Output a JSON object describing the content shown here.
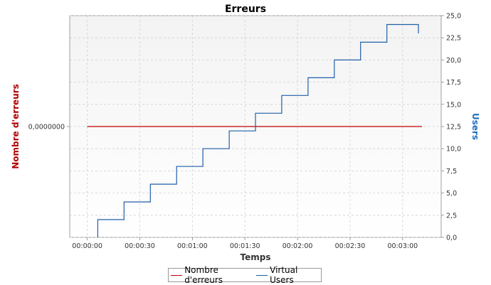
{
  "chart_data": {
    "type": "line",
    "title": "Erreurs",
    "xlabel": "Temps",
    "ylabel_left": "Nombre d'erreurs",
    "ylabel_right": "Users",
    "x_tick_labels": [
      "00:00:00",
      "00:00:30",
      "00:01:00",
      "00:01:30",
      "00:02:00",
      "00:02:30",
      "00:03:00"
    ],
    "x_tick_seconds": [
      0,
      30,
      60,
      90,
      120,
      150,
      180
    ],
    "xlim_seconds": [
      -10,
      202
    ],
    "left_axis": {
      "tick_labels": [
        "0,0000000"
      ],
      "ylim": [
        -1,
        1
      ]
    },
    "right_axis": {
      "tick_labels": [
        "0,0",
        "2,5",
        "5,0",
        "7,5",
        "10,0",
        "12,5",
        "15,0",
        "17,5",
        "20,0",
        "22,5",
        "25,0"
      ],
      "ticks": [
        0,
        2.5,
        5,
        7.5,
        10,
        12.5,
        15,
        17.5,
        20,
        22.5,
        25
      ],
      "ylim": [
        0,
        25
      ]
    },
    "grid": true,
    "legend_position": "bottom",
    "colors": {
      "errors": "#c00000",
      "users": "#1f5fa8",
      "left_label": "#b00000",
      "right_label": "#1f6fc0"
    },
    "series": [
      {
        "name": "Nombre d'erreurs",
        "axis": "left",
        "x": [
          0,
          191
        ],
        "y": [
          0,
          0
        ]
      },
      {
        "name": "Virtual Users",
        "axis": "right",
        "x": [
          6,
          6,
          21,
          21,
          36,
          36,
          51,
          51,
          66,
          66,
          81,
          81,
          96,
          96,
          111,
          111,
          126,
          126,
          141,
          141,
          156,
          156,
          171,
          171,
          189,
          189
        ],
        "y": [
          0,
          2,
          2,
          4,
          4,
          6,
          6,
          8,
          8,
          10,
          10,
          12,
          12,
          14,
          14,
          16,
          16,
          18,
          18,
          20,
          20,
          22,
          22,
          24,
          24,
          23
        ]
      }
    ]
  }
}
